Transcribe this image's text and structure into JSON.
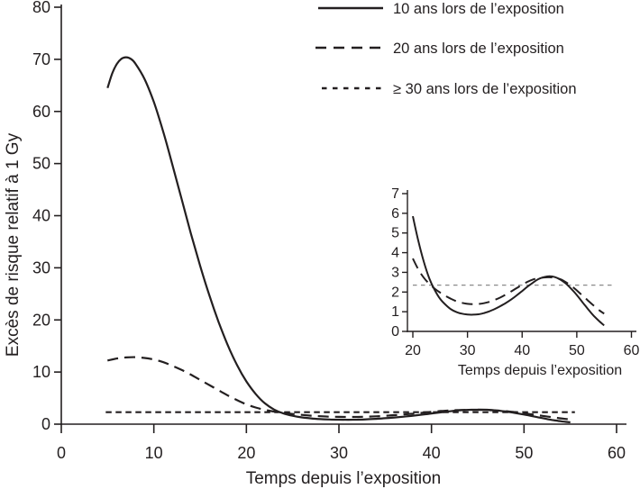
{
  "figure": {
    "background": "#ffffff",
    "ink_color": "#231f20",
    "reference_line_color": "#8a8a8a"
  },
  "chart_data": {
    "type": "line",
    "title": "",
    "xlabel": "Temps depuis l’exposition",
    "ylabel": "Excès de risque relatif à 1 Gy",
    "xlim": [
      0,
      60
    ],
    "ylim": [
      0,
      80
    ],
    "x_ticks": [
      0,
      10,
      20,
      30,
      40,
      50,
      60
    ],
    "y_ticks": [
      0,
      10,
      20,
      30,
      40,
      50,
      60,
      70,
      80
    ],
    "grid": false,
    "legend_position": "top-right",
    "legend": [
      {
        "label": "10 ans lors de l’exposition",
        "dash": "solid"
      },
      {
        "label": "20 ans lors de l’exposition",
        "dash": "long-dash"
      },
      {
        "label": "≥ 30 ans lors de l’exposition",
        "dash": "short-dash"
      }
    ],
    "series": [
      {
        "name": "≥ 30 ans lors de l’exposition",
        "dash": "short-dash",
        "points": [
          [
            4.8,
            2.3
          ],
          [
            55.5,
            2.3
          ]
        ]
      },
      {
        "name": "20 ans lors de l’exposition",
        "dash": "long-dash",
        "points": [
          [
            5,
            12.2
          ],
          [
            6,
            12.6
          ],
          [
            7,
            12.8
          ],
          [
            8,
            12.85
          ],
          [
            9,
            12.7
          ],
          [
            10,
            12.4
          ],
          [
            11,
            11.9
          ],
          [
            12,
            11.2
          ],
          [
            13,
            10.4
          ],
          [
            14,
            9.5
          ],
          [
            15,
            8.5
          ],
          [
            16,
            7.5
          ],
          [
            17,
            6.5
          ],
          [
            18,
            5.5
          ],
          [
            19,
            4.6
          ],
          [
            20,
            3.8
          ],
          [
            21,
            3.2
          ],
          [
            22,
            2.75
          ],
          [
            23,
            2.4
          ],
          [
            24,
            2.15
          ],
          [
            25,
            1.95
          ],
          [
            26,
            1.78
          ],
          [
            27,
            1.63
          ],
          [
            28,
            1.52
          ],
          [
            29,
            1.44
          ],
          [
            30,
            1.4
          ],
          [
            31,
            1.38
          ],
          [
            32,
            1.39
          ],
          [
            33,
            1.43
          ],
          [
            34,
            1.5
          ],
          [
            35,
            1.6
          ],
          [
            36,
            1.72
          ],
          [
            37,
            1.87
          ],
          [
            38,
            2.03
          ],
          [
            39,
            2.2
          ],
          [
            40,
            2.37
          ],
          [
            41,
            2.52
          ],
          [
            42,
            2.64
          ],
          [
            43,
            2.7
          ],
          [
            44,
            2.74
          ],
          [
            45,
            2.75
          ],
          [
            46,
            2.72
          ],
          [
            47,
            2.63
          ],
          [
            48,
            2.5
          ],
          [
            49,
            2.31
          ],
          [
            50,
            2.08
          ],
          [
            51,
            1.84
          ],
          [
            52,
            1.59
          ],
          [
            53,
            1.34
          ],
          [
            54,
            1.11
          ],
          [
            55,
            0.9
          ]
        ]
      },
      {
        "name": "10 ans lors de l’exposition",
        "dash": "solid",
        "points": [
          [
            5,
            64.5
          ],
          [
            5.5,
            67.3
          ],
          [
            6,
            69.1
          ],
          [
            6.5,
            70.1
          ],
          [
            7,
            70.4
          ],
          [
            7.5,
            70.1
          ],
          [
            8,
            69.2
          ],
          [
            9,
            66.2
          ],
          [
            10,
            61.8
          ],
          [
            11,
            56.2
          ],
          [
            12,
            49.8
          ],
          [
            13,
            43.2
          ],
          [
            14,
            36.6
          ],
          [
            15,
            30.4
          ],
          [
            16,
            24.7
          ],
          [
            17,
            19.6
          ],
          [
            18,
            15.1
          ],
          [
            19,
            11.3
          ],
          [
            20,
            8.2
          ],
          [
            21,
            5.8
          ],
          [
            22,
            4.0
          ],
          [
            23,
            2.8
          ],
          [
            24,
            2.05
          ],
          [
            25,
            1.6
          ],
          [
            26,
            1.3
          ],
          [
            27,
            1.1
          ],
          [
            28,
            0.97
          ],
          [
            29,
            0.89
          ],
          [
            30,
            0.86
          ],
          [
            31,
            0.85
          ],
          [
            32,
            0.87
          ],
          [
            33,
            0.93
          ],
          [
            34,
            1.02
          ],
          [
            35,
            1.14
          ],
          [
            36,
            1.28
          ],
          [
            37,
            1.44
          ],
          [
            38,
            1.62
          ],
          [
            39,
            1.83
          ],
          [
            40,
            2.05
          ],
          [
            41,
            2.27
          ],
          [
            42,
            2.47
          ],
          [
            43,
            2.66
          ],
          [
            44,
            2.75
          ],
          [
            45,
            2.79
          ],
          [
            46,
            2.76
          ],
          [
            47,
            2.63
          ],
          [
            48,
            2.43
          ],
          [
            49,
            2.16
          ],
          [
            50,
            1.85
          ],
          [
            51,
            1.5
          ],
          [
            52,
            1.15
          ],
          [
            53,
            0.82
          ],
          [
            54,
            0.55
          ],
          [
            55,
            0.35
          ]
        ]
      }
    ],
    "inset": {
      "xlabel": "Temps depuis l’exposition",
      "xlim": [
        20,
        60
      ],
      "ylim": [
        0,
        7
      ],
      "x_ticks": [
        20,
        30,
        40,
        50,
        60
      ],
      "y_ticks": [
        0,
        1,
        2,
        3,
        4,
        5,
        6,
        7
      ],
      "series": [
        {
          "name": "reference-line",
          "dash": "fine-dash",
          "color": "#8a8a8a",
          "width": 1.3,
          "points": [
            [
              20,
              2.35
            ],
            [
              57,
              2.35
            ]
          ]
        },
        {
          "name": "20 ans lors de l’exposition",
          "dash": "long-dash",
          "points": [
            [
              20,
              3.7
            ],
            [
              21,
              3.15
            ],
            [
              22,
              2.73
            ],
            [
              23,
              2.42
            ],
            [
              24,
              2.17
            ],
            [
              25,
              1.97
            ],
            [
              26,
              1.8
            ],
            [
              27,
              1.65
            ],
            [
              28,
              1.53
            ],
            [
              29,
              1.45
            ],
            [
              30,
              1.4
            ],
            [
              31,
              1.38
            ],
            [
              32,
              1.39
            ],
            [
              33,
              1.43
            ],
            [
              34,
              1.5
            ],
            [
              35,
              1.6
            ],
            [
              36,
              1.72
            ],
            [
              37,
              1.87
            ],
            [
              38,
              2.03
            ],
            [
              39,
              2.2
            ],
            [
              40,
              2.37
            ],
            [
              41,
              2.52
            ],
            [
              42,
              2.64
            ],
            [
              43,
              2.7
            ],
            [
              44,
              2.74
            ],
            [
              45,
              2.75
            ],
            [
              46,
              2.72
            ],
            [
              47,
              2.65
            ],
            [
              48,
              2.5
            ],
            [
              49,
              2.31
            ],
            [
              50,
              2.08
            ],
            [
              51,
              1.83
            ],
            [
              52,
              1.58
            ],
            [
              53,
              1.33
            ],
            [
              54,
              1.1
            ],
            [
              55,
              0.9
            ]
          ]
        },
        {
          "name": "10 ans lors de l’exposition",
          "dash": "solid",
          "points": [
            [
              20,
              5.85
            ],
            [
              21,
              4.6
            ],
            [
              22,
              3.55
            ],
            [
              23,
              2.7
            ],
            [
              24,
              2.1
            ],
            [
              25,
              1.65
            ],
            [
              26,
              1.35
            ],
            [
              27,
              1.12
            ],
            [
              28,
              0.98
            ],
            [
              29,
              0.9
            ],
            [
              30,
              0.86
            ],
            [
              31,
              0.85
            ],
            [
              32,
              0.87
            ],
            [
              33,
              0.93
            ],
            [
              34,
              1.02
            ],
            [
              35,
              1.14
            ],
            [
              36,
              1.28
            ],
            [
              37,
              1.44
            ],
            [
              38,
              1.62
            ],
            [
              39,
              1.83
            ],
            [
              40,
              2.05
            ],
            [
              41,
              2.28
            ],
            [
              42,
              2.48
            ],
            [
              43,
              2.66
            ],
            [
              44,
              2.76
            ],
            [
              45,
              2.8
            ],
            [
              46,
              2.76
            ],
            [
              47,
              2.63
            ],
            [
              48,
              2.43
            ],
            [
              49,
              2.16
            ],
            [
              50,
              1.85
            ],
            [
              51,
              1.5
            ],
            [
              52,
              1.15
            ],
            [
              53,
              0.82
            ],
            [
              54,
              0.55
            ],
            [
              55,
              0.3
            ]
          ]
        }
      ]
    }
  }
}
